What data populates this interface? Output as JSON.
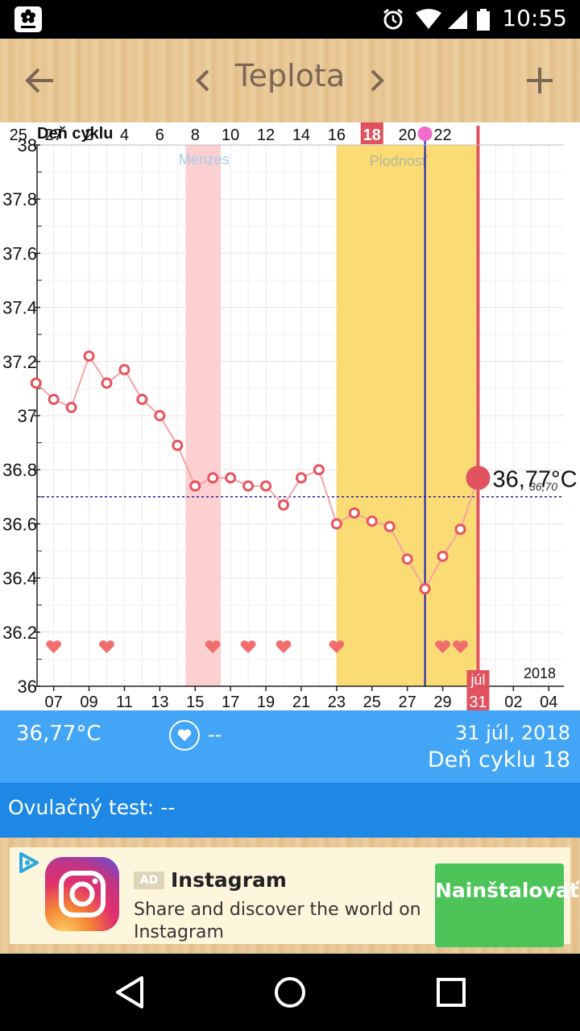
{
  "status_bar": {
    "time": "10:55"
  },
  "toolbar": {
    "title": "Teplota"
  },
  "chart_data": {
    "type": "line",
    "title": "",
    "top_axis_label": "Deň cyklu",
    "cycle_day_ticks": [
      "25",
      "27",
      "2",
      "4",
      "6",
      "8",
      "10",
      "12",
      "14",
      "16",
      "18",
      "20",
      "22"
    ],
    "current_cycle_day": "18",
    "date_ticks": [
      "07",
      "09",
      "11",
      "13",
      "15",
      "17",
      "19",
      "21",
      "23",
      "25",
      "27",
      "29",
      "31",
      "02",
      "04"
    ],
    "current_date_month": "júl",
    "current_date_day": "31",
    "year": "2018",
    "y_ticks": [
      "38",
      "37.8",
      "37.6",
      "37.4",
      "37.2",
      "37",
      "36.8",
      "36.6",
      "36.4",
      "36.2",
      "36"
    ],
    "ylim": [
      36,
      38
    ],
    "x_start_day": 6,
    "x_end_day": 37,
    "series": [
      {
        "x": [
          6,
          7,
          8,
          9,
          10,
          11,
          12,
          13,
          14,
          15,
          16,
          17,
          18,
          19,
          20,
          21,
          22,
          23,
          24,
          25,
          26,
          27,
          28,
          29,
          30,
          31
        ],
        "values": [
          37.12,
          37.06,
          37.03,
          37.22,
          37.12,
          37.17,
          37.06,
          37.0,
          36.89,
          36.74,
          36.77,
          36.77,
          36.74,
          36.74,
          36.67,
          36.77,
          36.8,
          36.6,
          36.64,
          36.61,
          36.59,
          36.47,
          36.36,
          36.48,
          36.58,
          36.77
        ]
      }
    ],
    "coverline": 36.7,
    "coverline_label": "36,70",
    "current_value_label": "36,77°C",
    "sex_days": [
      7,
      10,
      16,
      18,
      20,
      23,
      29,
      30
    ],
    "menses": {
      "label": "Menzes",
      "from_day": 14,
      "to_day": 16
    },
    "fertility": {
      "label": "Plodnosť",
      "from_day": 23,
      "to_day": 30
    },
    "ovulation_day": 28,
    "current_day": 31,
    "colors": {
      "line": "#f5a3a3",
      "marker": "#e8535e",
      "menses": "#fcd0d0",
      "fertility": "#fadb74",
      "ovulation": "#1a1ab8",
      "current": "#e0525e",
      "coverline": "#2222aa",
      "heart": "#f26d6d",
      "menses_label": "#a4cdeb",
      "fertility_label": "#b6b6a0"
    },
    "grid": true
  },
  "info": {
    "temperature": "36,77°C",
    "sex": "--",
    "date": "31 júl, 2018",
    "cycle_day": "Deň cyklu 18"
  },
  "ovulation_test": {
    "label": "Ovulačný test: --"
  },
  "ad": {
    "badge": "AD",
    "title": "Instagram",
    "description": "Share and discover the world on Instagram",
    "cta": "Nainštalovať"
  }
}
